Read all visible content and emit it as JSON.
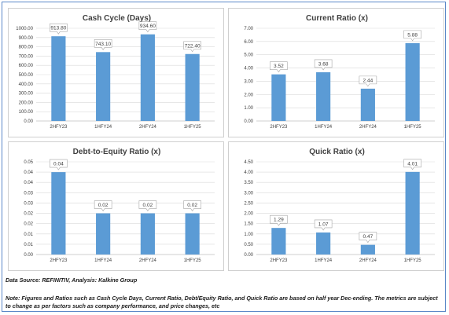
{
  "footer": {
    "source": "Data Source: REFINITIV, Analysis: Kalkine Group",
    "note": "Note: Figures and Ratios such as Cash Cycle Days, Current Ratio, Debt/Equity Ratio, and Quick Ratio are based on half  year Dec-ending. The metrics are subject to change as per factors such as company performance, and price changes, etc"
  },
  "colors": {
    "bar": "#5b9bd5",
    "grid": "#d9d9d9",
    "axis": "#bfbfbf",
    "text": "#404040"
  },
  "chart_data": [
    {
      "type": "bar",
      "title": "Cash Cycle (Days)",
      "categories": [
        "2HFY23",
        "1HFY24",
        "2HFY24",
        "1HFY25"
      ],
      "values": [
        913.8,
        743.1,
        934.6,
        722.4
      ],
      "labels": [
        "913.80",
        "743.10",
        "934.60",
        "722.40"
      ],
      "yticks": [
        "0.00",
        "100.00",
        "200.00",
        "300.00",
        "400.00",
        "500.00",
        "600.00",
        "700.00",
        "800.00",
        "900.00",
        "1000.00"
      ],
      "ylim": [
        0,
        1000
      ],
      "grid": true
    },
    {
      "type": "bar",
      "title": "Current Ratio (x)",
      "categories": [
        "2HFY23",
        "1HFY24",
        "2HFY24",
        "1HFY25"
      ],
      "values": [
        3.52,
        3.68,
        2.44,
        5.88
      ],
      "labels": [
        "3.52",
        "3.68",
        "2.44",
        "5.88"
      ],
      "yticks": [
        "0.00",
        "1.00",
        "2.00",
        "3.00",
        "4.00",
        "5.00",
        "6.00",
        "7.00"
      ],
      "ylim": [
        0,
        7
      ],
      "grid": true
    },
    {
      "type": "bar",
      "title": "Debt-to-Equity Ratio (x)",
      "categories": [
        "2HFY23",
        "1HFY24",
        "2HFY24",
        "1HFY25"
      ],
      "values": [
        0.04,
        0.02,
        0.02,
        0.02
      ],
      "labels": [
        "0.04",
        "0.02",
        "0.02",
        "0.02"
      ],
      "yticks": [
        "0.00",
        "0.01",
        "0.01",
        "0.02",
        "0.02",
        "0.03",
        "0.03",
        "0.04",
        "0.04",
        "0.05"
      ],
      "ylim": [
        0,
        0.045
      ],
      "grid": true
    },
    {
      "type": "bar",
      "title": "Quick Ratio (x)",
      "categories": [
        "2HFY23",
        "1HFY24",
        "2HFY24",
        "1HFY25"
      ],
      "values": [
        1.29,
        1.07,
        0.47,
        4.01
      ],
      "labels": [
        "1.29",
        "1.07",
        "0.47",
        "4.01"
      ],
      "yticks": [
        "0.00",
        "0.50",
        "1.00",
        "1.50",
        "2.00",
        "2.50",
        "3.00",
        "3.50",
        "4.00",
        "4.50"
      ],
      "ylim": [
        0,
        4.5
      ],
      "grid": true
    }
  ]
}
